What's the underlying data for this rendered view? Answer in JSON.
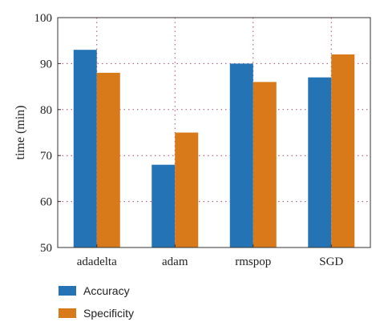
{
  "chart_data": {
    "type": "bar",
    "title": "",
    "xlabel": "",
    "ylabel": "time (min)",
    "categories": [
      "adadelta",
      "adam",
      "rmspop",
      "SGD"
    ],
    "series": [
      {
        "name": "Accuracy",
        "values": [
          93,
          68,
          90,
          87
        ],
        "color": "#2474b5"
      },
      {
        "name": "Specificity",
        "values": [
          88,
          75,
          86,
          92
        ],
        "color": "#d97a1a"
      }
    ],
    "ylim": [
      50,
      100
    ],
    "yticks": [
      50,
      60,
      70,
      80,
      90,
      100
    ],
    "grid": true,
    "legend_position": "bottom-left"
  }
}
